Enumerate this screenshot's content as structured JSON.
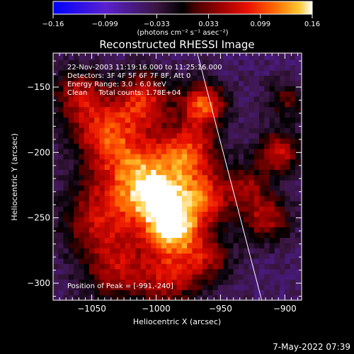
{
  "colorbar": {
    "tick_labels": [
      "-0.16",
      "-0.099",
      "-0.033",
      "0.033",
      "0.099",
      "0.16"
    ],
    "unit_label": "(photons cm⁻² s⁻¹ asec⁻²)"
  },
  "chart_data": {
    "type": "heatmap",
    "title": "Reconstructed RHESSI Image",
    "xlabel": "Heliocentric X (arcsec)",
    "ylabel": "Heliocentric Y (arcsec)",
    "xlim": [
      -1080,
      -887
    ],
    "ylim": [
      -313,
      -124
    ],
    "x_ticks": [
      -1050,
      -1000,
      -950,
      -900
    ],
    "y_ticks": [
      -150,
      -200,
      -250,
      -300
    ],
    "x_tick_labels": [
      "-1050",
      "-1000",
      "-950",
      "-900"
    ],
    "y_tick_labels": [
      "-150",
      "-200",
      "-250",
      "-300"
    ],
    "color_range": [
      -0.16,
      0.16
    ],
    "color_table": [
      "#0000ff",
      "#5a20d0",
      "#3a1640",
      "#000000",
      "#4a0000",
      "#9e0000",
      "#e81000",
      "#ff6400",
      "#ffc830",
      "#ffffff"
    ],
    "info_lines": [
      "22-Nov-2003 11:19:16.000 to 11:25:16.000",
      "Detectors: 3F 4F 5F 6F 7F 8F, Att 0",
      "Energy Range: 3.0 - 6.0 keV",
      "Clean     Total counts: 1.78E+04"
    ],
    "peak_label": "Position of Peak = [-991,-240]",
    "peak": {
      "x": -991,
      "y": -240
    },
    "limb_line": [
      {
        "x": -968,
        "y": -124
      },
      {
        "x": -918,
        "y": -313
      }
    ],
    "components": [
      {
        "x": -995,
        "y": -240,
        "amp": 1.0,
        "sigma": 18
      },
      {
        "x": -985,
        "y": -260,
        "amp": 0.75,
        "sigma": 14
      },
      {
        "x": -1015,
        "y": -215,
        "amp": 0.78,
        "sigma": 20
      },
      {
        "x": -975,
        "y": -200,
        "amp": 0.8,
        "sigma": 16
      },
      {
        "x": -963,
        "y": -163,
        "amp": 0.85,
        "sigma": 12
      },
      {
        "x": -1040,
        "y": -185,
        "amp": 0.7,
        "sigma": 18
      },
      {
        "x": -1010,
        "y": -160,
        "amp": 0.72,
        "sigma": 15
      },
      {
        "x": -1045,
        "y": -250,
        "amp": 0.6,
        "sigma": 20
      },
      {
        "x": -1030,
        "y": -290,
        "amp": 0.55,
        "sigma": 18
      },
      {
        "x": -990,
        "y": -295,
        "amp": 0.6,
        "sigma": 16
      },
      {
        "x": -960,
        "y": -280,
        "amp": 0.5,
        "sigma": 14
      },
      {
        "x": -960,
        "y": -235,
        "amp": 0.65,
        "sigma": 14
      },
      {
        "x": -1060,
        "y": -155,
        "amp": 0.55,
        "sigma": 14
      },
      {
        "x": -905,
        "y": -200,
        "amp": 0.65,
        "sigma": 12
      },
      {
        "x": -915,
        "y": -250,
        "amp": 0.6,
        "sigma": 13
      },
      {
        "x": -900,
        "y": -160,
        "amp": 0.4,
        "sigma": 10
      },
      {
        "x": -930,
        "y": -225,
        "amp": 0.45,
        "sigma": 11
      }
    ]
  },
  "footer": {
    "timestamp": "7-May-2022 07:39"
  }
}
